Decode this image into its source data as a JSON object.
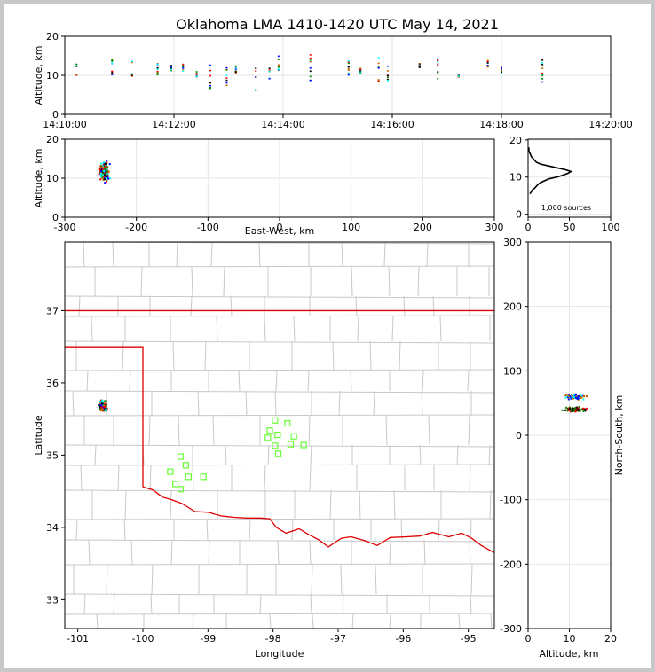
{
  "title": "Oklahoma LMA 1410-1420 UTC May 14, 2021",
  "panels": {
    "alt_time": {
      "ylabel": "Altitude, km",
      "xticks": [
        "14:10:00",
        "14:12:00",
        "14:14:00",
        "14:16:00",
        "14:18:00",
        "14:20:00"
      ],
      "yticks": [
        "0",
        "10",
        "20"
      ]
    },
    "alt_ew": {
      "ylabel": "Altitude, km",
      "xlabel": "East-West, km",
      "xticks": [
        "-300",
        "-200",
        "-100",
        "0",
        "100",
        "200",
        "300"
      ],
      "yticks": [
        "0",
        "10",
        "20"
      ]
    },
    "histogram": {
      "xticks": [
        "0",
        "50",
        "100"
      ],
      "yticks": [
        "0",
        "10",
        "20"
      ],
      "annotation": "1,000 sources"
    },
    "map": {
      "xlabel": "Longitude",
      "ylabel": "Latitude",
      "xticks": [
        "-101",
        "-100",
        "-99",
        "-98",
        "-97",
        "-96",
        "-95"
      ],
      "yticks": [
        "33",
        "34",
        "35",
        "36",
        "37"
      ]
    },
    "ns_alt": {
      "xlabel": "Altitude, km",
      "ylabel": "North-South, km",
      "xticks": [
        "0",
        "10",
        "20"
      ],
      "yticks": [
        "-300",
        "-200",
        "-100",
        "0",
        "100",
        "200",
        "300"
      ]
    }
  },
  "colors": {
    "border": "#e00000",
    "county": "#c8c8c8",
    "station": "#66ff33",
    "grid": "#e6e6e6",
    "sources": [
      "#00ffff",
      "#008800",
      "#0000ff",
      "#ff0000",
      "#cc6600",
      "#000000"
    ]
  },
  "chart_data": {
    "type": "scatter",
    "time_range": [
      "14:10:00",
      "14:20:00"
    ],
    "ew_range_km": [
      -300,
      300
    ],
    "ns_range_km": [
      -300,
      300
    ],
    "alt_range_km": [
      0,
      20
    ],
    "lon_range": [
      -101.2,
      -94.6
    ],
    "lat_range": [
      32.6,
      37.95
    ],
    "source_bursts": [
      {
        "t": "14:10:13",
        "alt": [
          10,
          13
        ]
      },
      {
        "t": "14:10:52",
        "alt": [
          9.5,
          14
        ]
      },
      {
        "t": "14:11:14",
        "alt": [
          9,
          14
        ]
      },
      {
        "t": "14:11:42",
        "alt": [
          10,
          13
        ]
      },
      {
        "t": "14:11:57",
        "alt": [
          11,
          12.5
        ]
      },
      {
        "t": "14:12:10",
        "alt": [
          11,
          13.5
        ]
      },
      {
        "t": "14:12:25",
        "alt": [
          9.5,
          11
        ]
      },
      {
        "t": "14:12:40",
        "alt": [
          6,
          15
        ]
      },
      {
        "t": "14:12:58",
        "alt": [
          6.5,
          12
        ]
      },
      {
        "t": "14:13:08",
        "alt": [
          10,
          13
        ]
      },
      {
        "t": "14:13:30",
        "alt": [
          6,
          14
        ]
      },
      {
        "t": "14:13:45",
        "alt": [
          9,
          12
        ]
      },
      {
        "t": "14:13:55",
        "alt": [
          11,
          15
        ]
      },
      {
        "t": "14:14:30",
        "alt": [
          8.5,
          16
        ]
      },
      {
        "t": "14:15:12",
        "alt": [
          9,
          14
        ]
      },
      {
        "t": "14:15:25",
        "alt": [
          10.5,
          12
        ]
      },
      {
        "t": "14:15:45",
        "alt": [
          8,
          15
        ]
      },
      {
        "t": "14:15:55",
        "alt": [
          8,
          14
        ]
      },
      {
        "t": "14:16:30",
        "alt": [
          12,
          13
        ]
      },
      {
        "t": "14:16:50",
        "alt": [
          9,
          15
        ]
      },
      {
        "t": "14:17:13",
        "alt": [
          9.5,
          10
        ]
      },
      {
        "t": "14:17:45",
        "alt": [
          12,
          14
        ]
      },
      {
        "t": "14:18:00",
        "alt": [
          10.5,
          12
        ]
      },
      {
        "t": "14:18:45",
        "alt": [
          8,
          15
        ]
      }
    ],
    "altitude_histogram": [
      {
        "alt": 5.5,
        "count": 2
      },
      {
        "alt": 6,
        "count": 4
      },
      {
        "alt": 6.5,
        "count": 5
      },
      {
        "alt": 7,
        "count": 8
      },
      {
        "alt": 7.5,
        "count": 10
      },
      {
        "alt": 8,
        "count": 12
      },
      {
        "alt": 8.5,
        "count": 15
      },
      {
        "alt": 9,
        "count": 20
      },
      {
        "alt": 9.5,
        "count": 25
      },
      {
        "alt": 10,
        "count": 35
      },
      {
        "alt": 10.5,
        "count": 42
      },
      {
        "alt": 11,
        "count": 48
      },
      {
        "alt": 11.5,
        "count": 52
      },
      {
        "alt": 12,
        "count": 45
      },
      {
        "alt": 12.5,
        "count": 35
      },
      {
        "alt": 13,
        "count": 25
      },
      {
        "alt": 13.5,
        "count": 15
      },
      {
        "alt": 14,
        "count": 10
      },
      {
        "alt": 14.5,
        "count": 8
      },
      {
        "alt": 15,
        "count": 6
      },
      {
        "alt": 15.5,
        "count": 4
      },
      {
        "alt": 16,
        "count": 3
      },
      {
        "alt": 16.5,
        "count": 2
      },
      {
        "alt": 17,
        "count": 1
      },
      {
        "alt": 18,
        "count": 1
      }
    ],
    "source_cluster": {
      "lon": [
        -100.8,
        -100.45
      ],
      "lat": [
        35.55,
        35.9
      ],
      "ew_km": [
        -255,
        -235
      ],
      "ns_km": [
        35,
        65
      ]
    },
    "stations": [
      {
        "lon": -97.97,
        "lat": 35.48
      },
      {
        "lon": -97.78,
        "lat": 35.44
      },
      {
        "lon": -98.05,
        "lat": 35.34
      },
      {
        "lon": -97.93,
        "lat": 35.28
      },
      {
        "lon": -98.08,
        "lat": 35.24
      },
      {
        "lon": -97.68,
        "lat": 35.26
      },
      {
        "lon": -97.97,
        "lat": 35.13
      },
      {
        "lon": -97.73,
        "lat": 35.15
      },
      {
        "lon": -97.53,
        "lat": 35.14
      },
      {
        "lon": -97.92,
        "lat": 35.02
      },
      {
        "lon": -99.42,
        "lat": 34.98
      },
      {
        "lon": -99.34,
        "lat": 34.86
      },
      {
        "lon": -99.58,
        "lat": 34.77
      },
      {
        "lon": -99.3,
        "lat": 34.7
      },
      {
        "lon": -99.07,
        "lat": 34.7
      },
      {
        "lon": -99.5,
        "lat": 34.6
      },
      {
        "lon": -99.42,
        "lat": 34.53
      }
    ]
  }
}
